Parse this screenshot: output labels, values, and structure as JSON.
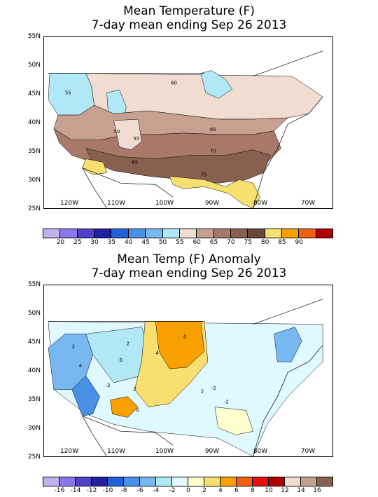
{
  "panels": [
    {
      "title_line1": "Mean Temperature (F)",
      "title_line2": "7-day mean ending Sep 26 2013",
      "lat_labels": [
        "55N",
        "50N",
        "45N",
        "40N",
        "35N",
        "30N",
        "25N"
      ],
      "lon_labels": [
        "120W",
        "110W",
        "100W",
        "90W",
        "80W",
        "70W"
      ],
      "colorbar_labels": [
        "20",
        "25",
        "30",
        "35",
        "40",
        "45",
        "50",
        "55",
        "60",
        "65",
        "70",
        "75",
        "80",
        "85",
        "90"
      ],
      "colorbar_colors": [
        "#c0b0f0",
        "#8878e8",
        "#5040c8",
        "#2020a0",
        "#2060d8",
        "#4890e8",
        "#78b8f0",
        "#b0e8f8",
        "#f0dcd0",
        "#c8a090",
        "#a87868",
        "#886050",
        "#684838",
        "#f8e070",
        "#f8a000",
        "#f06010",
        "#b00000"
      ],
      "contour_labels": [
        "55",
        "60",
        "50",
        "55",
        "65",
        "70",
        "65",
        "75"
      ]
    },
    {
      "title_line1": "Mean Temp (F) Anomaly",
      "title_line2": "7-day mean ending Sep 26 2013",
      "lat_labels": [
        "55N",
        "50N",
        "45N",
        "40N",
        "35N",
        "30N",
        "25N"
      ],
      "lon_labels": [
        "120W",
        "110W",
        "100W",
        "90W",
        "80W",
        "70W"
      ],
      "colorbar_labels": [
        "-16",
        "-14",
        "-12",
        "-10",
        "-8",
        "-6",
        "-4",
        "-2",
        "0",
        "2",
        "4",
        "6",
        "8",
        "10",
        "12",
        "14",
        "16"
      ],
      "colorbar_colors": [
        "#c0b0f0",
        "#8878e8",
        "#5040c8",
        "#2020a0",
        "#2060d8",
        "#4890e8",
        "#78b8f0",
        "#b0e8f8",
        "#e0f8ff",
        "#ffffd0",
        "#f8e070",
        "#f8a000",
        "#f06010",
        "#e01010",
        "#b00000",
        "#f0dcd0",
        "#c8a090",
        "#886050"
      ],
      "contour_labels": [
        "2",
        "4",
        "2",
        "0",
        "-2",
        "0",
        "2",
        "0",
        "-2",
        "2",
        "4",
        "-2"
      ]
    }
  ]
}
